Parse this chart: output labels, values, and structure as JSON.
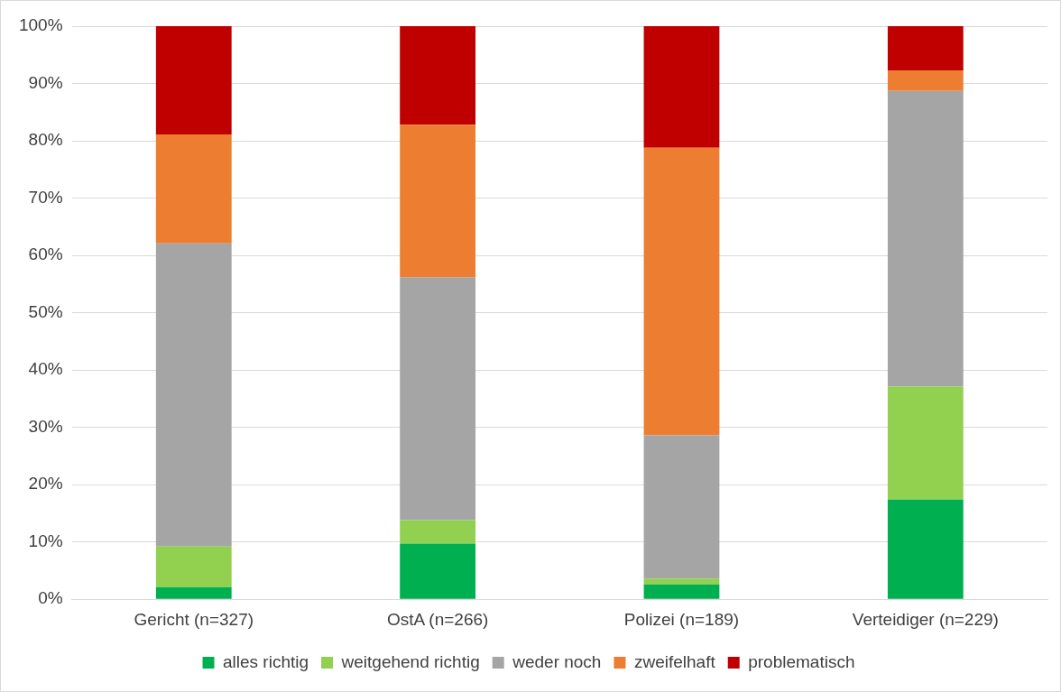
{
  "chart_data": {
    "type": "bar",
    "stacked": true,
    "categories": [
      "Gericht (n=327)",
      "OstA (n=266)",
      "Polizei (n=189)",
      "Verteidiger (n=229)"
    ],
    "series": [
      {
        "name": "alles richtig",
        "color": "#00b050",
        "values": [
          2.1,
          9.7,
          2.6,
          17.4
        ]
      },
      {
        "name": "weitgehend richtig",
        "color": "#92d050",
        "values": [
          7.1,
          4.1,
          1.0,
          19.7
        ]
      },
      {
        "name": "weder noch",
        "color": "#a5a5a5",
        "values": [
          52.9,
          42.4,
          25.0,
          51.6
        ]
      },
      {
        "name": "zweifelhaft",
        "color": "#ed7d31",
        "values": [
          19.0,
          26.6,
          50.2,
          3.6
        ]
      },
      {
        "name": "problematisch",
        "color": "#c00000",
        "values": [
          18.9,
          17.2,
          21.2,
          7.7
        ]
      }
    ],
    "ylim": [
      0,
      100
    ],
    "yticks": [
      {
        "value": 0,
        "label": "0%"
      },
      {
        "value": 10,
        "label": "10%"
      },
      {
        "value": 20,
        "label": "20%"
      },
      {
        "value": 30,
        "label": "30%"
      },
      {
        "value": 40,
        "label": "40%"
      },
      {
        "value": 50,
        "label": "50%"
      },
      {
        "value": 60,
        "label": "60%"
      },
      {
        "value": 70,
        "label": "70%"
      },
      {
        "value": 80,
        "label": "80%"
      },
      {
        "value": 90,
        "label": "90%"
      },
      {
        "value": 100,
        "label": "100%"
      }
    ],
    "grid": "y",
    "legend": "bottom"
  }
}
